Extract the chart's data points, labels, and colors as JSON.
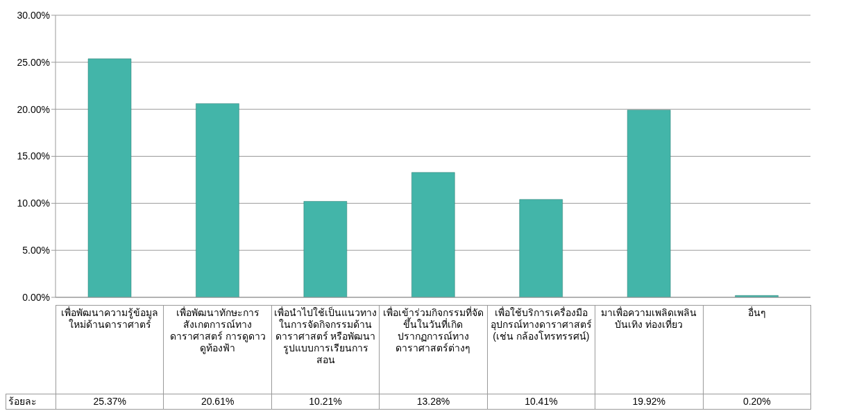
{
  "chart_data": {
    "type": "bar",
    "categories": [
      "เพื่อพัฒนาความรู้ข้อมูลใหม่ด้านดาราศาตร์",
      "เพื่อพัฒนาทักษะการสังเกตการณ์ทางดาราศาสตร์ การดูดาว ดูท้องฟ้า",
      "เพื่อนำไปใช้เป็นแนวทางในการจัดกิจกรรมด้านดาราศาสตร์ หรือพัฒนารูปแบบการเรียนการสอน",
      "เพื่อเข้าร่วมกิจกรรมที่จัดขึ้นในวันที่เกิดปรากฏการณ์ทางดาราศาสตร์ต่างๆ",
      "เพื่อใช้บริการเครื่องมือ อุปกรณ์ทางดาราศาสตร์ (เช่น กล้องโทรทรรศน์)",
      "มาเพื่อความเพลิดเพลิน บันเทิง ท่องเที่ยว",
      "อื่นๆ"
    ],
    "series": [
      {
        "name": "ร้อยละ",
        "color": "#43b5a9",
        "values": [
          25.37,
          20.61,
          10.21,
          13.28,
          10.41,
          19.92,
          0.2
        ],
        "value_labels": [
          "25.37%",
          "20.61%",
          "10.21%",
          "13.28%",
          "10.41%",
          "19.92%",
          "0.20%"
        ]
      }
    ],
    "ylim": [
      0,
      30
    ],
    "yticks": [
      {
        "value": 0,
        "label": "0.00%"
      },
      {
        "value": 5,
        "label": "5.00%"
      },
      {
        "value": 10,
        "label": "10.00%"
      },
      {
        "value": 15,
        "label": "15.00%"
      },
      {
        "value": 20,
        "label": "20.00%"
      },
      {
        "value": 25,
        "label": "25.00%"
      },
      {
        "value": 30,
        "label": "30.00%"
      }
    ],
    "grid": "y",
    "legend": false
  }
}
